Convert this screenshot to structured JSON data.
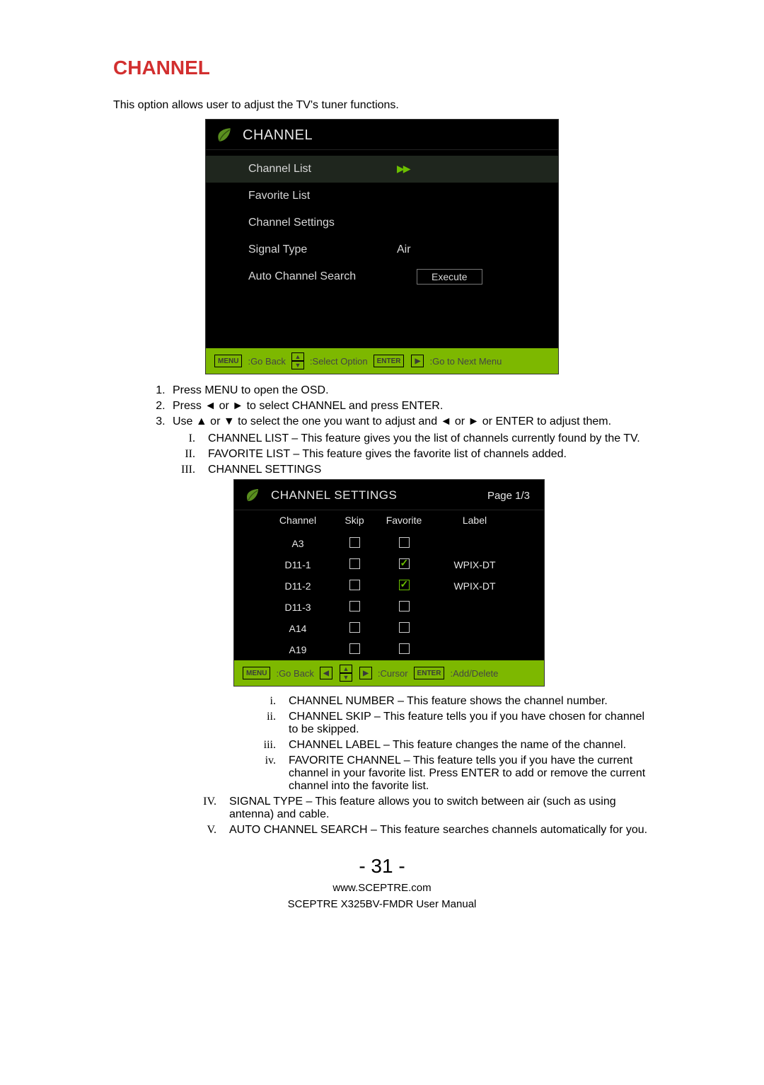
{
  "heading": "CHANNEL",
  "intro": "This option allows user to adjust the TV's tuner functions.",
  "osd1": {
    "title": "CHANNEL",
    "rows": [
      {
        "label": "Channel List",
        "value": "",
        "selected": true,
        "arrows": true
      },
      {
        "label": "Favorite List",
        "value": "",
        "selected": false
      },
      {
        "label": "Channel Settings",
        "value": "",
        "selected": false
      },
      {
        "label": "Signal Type",
        "value": "Air",
        "selected": false
      },
      {
        "label": "Auto Channel Search",
        "value": "",
        "exec": "Execute",
        "selected": false
      }
    ],
    "footer": {
      "menu": "MENU",
      "goBack": ":Go Back",
      "select": ":Select Option",
      "enter": "ENTER",
      "next": ":Go to Next Menu"
    }
  },
  "steps": {
    "s1": "Press MENU to open the OSD.",
    "s2": "Press ◄ or ► to select CHANNEL and press ENTER.",
    "s3": "Use ▲ or ▼ to select the one you want to adjust and ◄ or ► or ENTER to adjust them.",
    "r1": "CHANNEL LIST – This feature gives you the list of channels currently found by the TV.",
    "r2": "FAVORITE LIST – This feature gives the favorite list of channels added.",
    "r3": "CHANNEL SETTINGS",
    "r4": "SIGNAL TYPE – This feature allows you to switch between air (such as using antenna) and cable.",
    "r5": "AUTO CHANNEL SEARCH – This feature searches channels automatically for you.",
    "i1": "CHANNEL NUMBER – This feature shows the channel number.",
    "i2": "CHANNEL SKIP – This feature tells you if you have chosen for channel to be skipped.",
    "i3": "CHANNEL LABEL – This feature changes the name of the channel.",
    "i4": "FAVORITE CHANNEL – This feature tells you if you have the current channel in your favorite list. Press ENTER to add or remove the current channel into the favorite list."
  },
  "osd2": {
    "title": "CHANNEL SETTINGS",
    "page": "Page 1/3",
    "cols": {
      "c1": "Channel",
      "c2": "Skip",
      "c3": "Favorite",
      "c4": "Label"
    },
    "rows": [
      {
        "ch": "A3",
        "skip": false,
        "fav": false,
        "favhl": false,
        "label": ""
      },
      {
        "ch": "D11-1",
        "skip": false,
        "fav": true,
        "favhl": false,
        "label": "WPIX-DT"
      },
      {
        "ch": "D11-2",
        "skip": false,
        "fav": true,
        "favhl": true,
        "label": "WPIX-DT"
      },
      {
        "ch": "D11-3",
        "skip": false,
        "fav": false,
        "favhl": false,
        "label": ""
      },
      {
        "ch": "A14",
        "skip": false,
        "fav": false,
        "favhl": false,
        "label": ""
      },
      {
        "ch": "A19",
        "skip": false,
        "fav": false,
        "favhl": false,
        "label": ""
      }
    ],
    "footer": {
      "menu": "MENU",
      "goBack": ":Go Back",
      "cursor": ":Cursor",
      "enter": "ENTER",
      "add": ":Add/Delete"
    }
  },
  "pageNumber": "- 31 -",
  "footer1": "www.SCEPTRE.com",
  "footer2": "SCEPTRE X325BV-FMDR User Manual"
}
